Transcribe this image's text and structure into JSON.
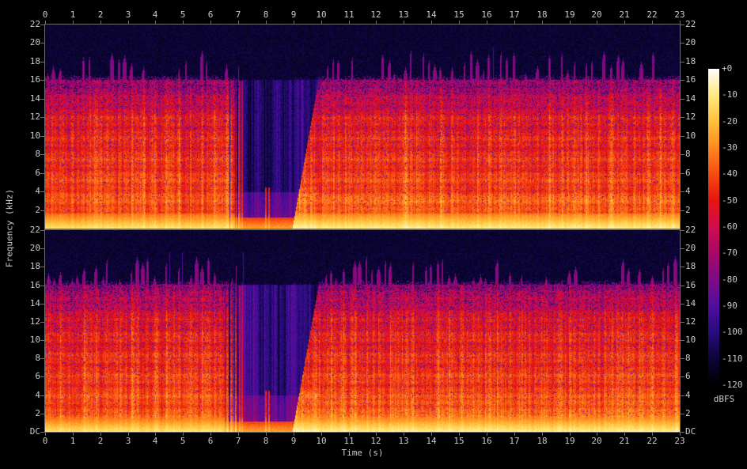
{
  "axes": {
    "time": {
      "label": "Time (s)",
      "tick_labels": [
        "0",
        "1",
        "2",
        "3",
        "4",
        "5",
        "6",
        "7",
        "8",
        "9",
        "10",
        "11",
        "12",
        "13",
        "14",
        "15",
        "16",
        "17",
        "18",
        "19",
        "20",
        "21",
        "22",
        "23"
      ],
      "tick_seconds": [
        0,
        1,
        2,
        3,
        4,
        5,
        6,
        7,
        8,
        9,
        10,
        11,
        12,
        13,
        14,
        15,
        16,
        17,
        18,
        19,
        20,
        21,
        22,
        23
      ]
    },
    "frequency": {
      "label": "Frequency (kHz)",
      "channel1": {
        "tick_labels": [
          "22",
          "20",
          "18",
          "16",
          "14",
          "12",
          "10",
          "8",
          "6",
          "4",
          "2"
        ],
        "tick_khz": [
          22,
          20,
          18,
          16,
          14,
          12,
          10,
          8,
          6,
          4,
          2
        ]
      },
      "channel2": {
        "tick_labels": [
          "22",
          "20",
          "18",
          "16",
          "14",
          "12",
          "10",
          "8",
          "6",
          "4",
          "2",
          "DC"
        ],
        "tick_khz": [
          22,
          20,
          18,
          16,
          14,
          12,
          10,
          8,
          6,
          4,
          2,
          0
        ]
      }
    },
    "colorbar": {
      "label": "dBFS",
      "tick_labels": [
        "+0",
        "-10",
        "-20",
        "-30",
        "-40",
        "-50",
        "-60",
        "-70",
        "-80",
        "-90",
        "-100",
        "-110",
        "-120"
      ],
      "tick_db": [
        0,
        -10,
        -20,
        -30,
        -40,
        -50,
        -60,
        -70,
        -80,
        -90,
        -100,
        -110,
        -120
      ]
    }
  },
  "chart_data": {
    "type": "heatmap",
    "subtype": "stereo-audio-spectrogram",
    "channels": 2,
    "x_axis": {
      "label": "Time (s)",
      "range_s": [
        0,
        23
      ],
      "tick_step": 1
    },
    "y_axis": {
      "label": "Frequency (kHz)",
      "range_khz": [
        0,
        22
      ],
      "tick_step": 2,
      "dc_label": "DC"
    },
    "z_axis": {
      "label": "dBFS",
      "range_db": [
        0,
        -120
      ],
      "tick_step": -10
    },
    "palette": [
      [
        0,
        "#ffffff"
      ],
      [
        -10,
        "#ffe97e"
      ],
      [
        -20,
        "#ffc13a"
      ],
      [
        -30,
        "#ff8820"
      ],
      [
        -40,
        "#f74b10"
      ],
      [
        -50,
        "#e81410"
      ],
      [
        -60,
        "#d00c50"
      ],
      [
        -70,
        "#a80866"
      ],
      [
        -80,
        "#7c0b86"
      ],
      [
        -90,
        "#520da0"
      ],
      [
        -100,
        "#270c7c"
      ],
      [
        -110,
        "#0c0538"
      ],
      [
        -120,
        "#000000"
      ]
    ],
    "features": {
      "bass_band_khz": [
        0,
        1.7
      ],
      "bass_peak_level_db": -10.5,
      "body_base_level_db": -36,
      "body_rolloff_db_per_khz": 1.1,
      "extra_rolloff_above_khz": 12,
      "body_cutoff_khz": 16.1,
      "hf_burst_top_khz": [
        16.7,
        19.3
      ],
      "hf_burst_level_db": -76,
      "noise_floor_db": -111,
      "quiet_gap_fade_s": [
        6.35,
        7.3
      ],
      "quiet_gap_s": [
        7.3,
        8.95
      ],
      "gap_transients": [
        {
          "time_s": 7.02,
          "max_khz": 16
        },
        {
          "time_s": 7.12,
          "max_khz": 16
        },
        {
          "time_s": 7.98,
          "max_khz": 4.5
        },
        {
          "time_s": 8.08,
          "max_khz": 4.5
        }
      ],
      "riser_sweep_s": [
        8.95,
        9.9
      ],
      "riser_top_khz": 16,
      "beat_period_s": 0.431,
      "channel_seeds": [
        20,
        77
      ]
    }
  },
  "layout_colors": {
    "background": "#000000",
    "axis_line": "#6f6f6f",
    "tick_text": "#cacaca"
  }
}
